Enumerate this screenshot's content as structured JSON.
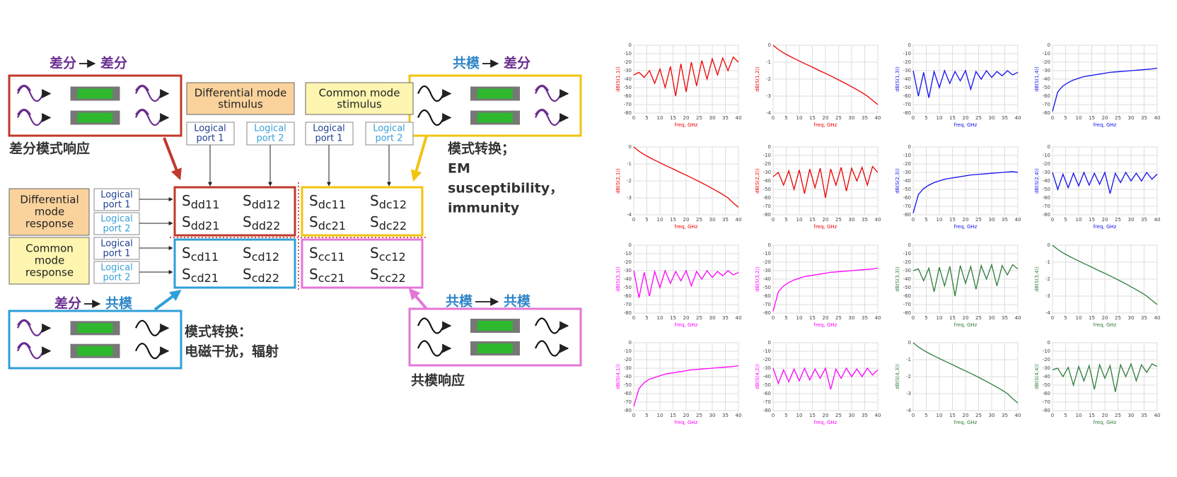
{
  "diagram": {
    "dd_label": {
      "from": "差分",
      "to": "差分"
    },
    "dd_caption": "差分模式响应",
    "dc_label": {
      "from": "共模",
      "to": "差分"
    },
    "dc_caption": [
      "模式转换；",
      "EM",
      "susceptibility，",
      "immunity"
    ],
    "cd_label": {
      "from": "差分",
      "to": "共模"
    },
    "cd_caption": [
      "模式转换：",
      "电磁干扰，辐射"
    ],
    "cc_label": {
      "from": "共模",
      "to": "共模"
    },
    "cc_caption": "共模响应",
    "stimulus": [
      [
        "Differential mode",
        "stimulus"
      ],
      [
        "Common mode",
        "stimulus"
      ]
    ],
    "response": [
      [
        "Differential",
        "mode",
        "response"
      ],
      [
        "Common",
        "mode",
        "response"
      ]
    ],
    "ports_top": [
      [
        "Logical",
        "port 1"
      ],
      [
        "Logical",
        "port 2"
      ],
      [
        "Logical",
        "port 1"
      ],
      [
        "Logical",
        "port 2"
      ]
    ],
    "ports_left": [
      [
        "Logical",
        "port 1"
      ],
      [
        "Logical",
        "port 2"
      ],
      [
        "Logical",
        "port 1"
      ],
      [
        "Logical",
        "port 2"
      ]
    ],
    "symbol": "S",
    "matrix": {
      "dd": [
        "dd11",
        "dd12",
        "dd21",
        "dd22"
      ],
      "dc": [
        "dc11",
        "dc12",
        "dc21",
        "dc22"
      ],
      "cd": [
        "cd11",
        "cd12",
        "cd21",
        "cd22"
      ],
      "cc": [
        "cc11",
        "cc12",
        "cc21",
        "cc22"
      ]
    }
  },
  "chart_data": [
    {
      "type": "line",
      "ylabel": "dB(S(1,1))",
      "xlabel": "freq, GHz",
      "color": "#ee0000",
      "x": [
        0,
        2,
        4,
        6,
        8,
        10,
        12,
        14,
        16,
        18,
        20,
        22,
        24,
        26,
        28,
        30,
        32,
        34,
        36,
        38,
        40
      ],
      "values": [
        -35,
        -32,
        -38,
        -30,
        -45,
        -28,
        -50,
        -25,
        -60,
        -22,
        -55,
        -20,
        -48,
        -18,
        -40,
        -16,
        -35,
        -15,
        -30,
        -14,
        -20
      ],
      "xlim": [
        0,
        40
      ],
      "ylim": [
        -80,
        0
      ],
      "xticks": [
        0,
        5,
        10,
        15,
        20,
        25,
        30,
        35,
        40
      ],
      "yticks": [
        0,
        -10,
        -20,
        -30,
        -40,
        -50,
        -60,
        -70,
        -80
      ],
      "grid": true
    },
    {
      "type": "line",
      "ylabel": "dB(S(1,2))",
      "xlabel": "freq, GHz",
      "color": "#ee0000",
      "x": [
        0,
        2,
        4,
        6,
        8,
        10,
        12,
        14,
        16,
        18,
        20,
        22,
        24,
        26,
        28,
        30,
        32,
        34,
        36,
        38,
        40
      ],
      "values": [
        0,
        -0.25,
        -0.45,
        -0.62,
        -0.78,
        -0.93,
        -1.08,
        -1.22,
        -1.37,
        -1.52,
        -1.66,
        -1.81,
        -1.96,
        -2.12,
        -2.28,
        -2.45,
        -2.62,
        -2.8,
        -3.0,
        -3.25,
        -3.5
      ],
      "xlim": [
        0,
        40
      ],
      "ylim": [
        -4,
        0
      ],
      "xticks": [
        0,
        5,
        10,
        15,
        20,
        25,
        30,
        35,
        40
      ],
      "yticks": [
        0,
        -1,
        -2,
        -3,
        -4
      ],
      "grid": true
    },
    {
      "type": "line",
      "ylabel": "dB(S(1,3))",
      "xlabel": "freq, GHz",
      "color": "#1010ee",
      "x": [
        0,
        2,
        4,
        6,
        8,
        10,
        12,
        14,
        16,
        18,
        20,
        22,
        24,
        26,
        28,
        30,
        32,
        34,
        36,
        38,
        40
      ],
      "values": [
        -30,
        -60,
        -32,
        -62,
        -31,
        -50,
        -30,
        -45,
        -31,
        -42,
        -30,
        -52,
        -31,
        -40,
        -30,
        -38,
        -31,
        -36,
        -30,
        -35,
        -32
      ],
      "xlim": [
        0,
        40
      ],
      "ylim": [
        -80,
        0
      ],
      "xticks": [
        0,
        5,
        10,
        15,
        20,
        25,
        30,
        35,
        40
      ],
      "yticks": [
        0,
        -10,
        -20,
        -30,
        -40,
        -50,
        -60,
        -70,
        -80
      ],
      "grid": true
    },
    {
      "type": "line",
      "ylabel": "dB(S(1,4))",
      "xlabel": "freq, GHz",
      "color": "#1010ee",
      "x": [
        0,
        2,
        4,
        6,
        8,
        10,
        12,
        14,
        16,
        18,
        20,
        22,
        24,
        26,
        28,
        30,
        32,
        34,
        36,
        38,
        40
      ],
      "values": [
        -78,
        -55,
        -48,
        -44,
        -41,
        -39,
        -37,
        -36,
        -35,
        -34,
        -33,
        -32,
        -31.5,
        -31,
        -30.5,
        -30,
        -29.5,
        -29,
        -28.5,
        -28,
        -27
      ],
      "xlim": [
        0,
        40
      ],
      "ylim": [
        -80,
        0
      ],
      "xticks": [
        0,
        5,
        10,
        15,
        20,
        25,
        30,
        35,
        40
      ],
      "yticks": [
        0,
        -10,
        -20,
        -30,
        -40,
        -50,
        -60,
        -70,
        -80
      ],
      "grid": true
    },
    {
      "type": "line",
      "ylabel": "dB(S(2,1))",
      "xlabel": "freq, GHz",
      "color": "#ee0000",
      "x": [
        0,
        2,
        4,
        6,
        8,
        10,
        12,
        14,
        16,
        18,
        20,
        22,
        24,
        26,
        28,
        30,
        32,
        34,
        36,
        38,
        40
      ],
      "values": [
        0,
        -0.25,
        -0.45,
        -0.62,
        -0.78,
        -0.93,
        -1.08,
        -1.22,
        -1.37,
        -1.52,
        -1.66,
        -1.81,
        -1.96,
        -2.12,
        -2.28,
        -2.45,
        -2.62,
        -2.8,
        -3.0,
        -3.3,
        -3.55
      ],
      "xlim": [
        0,
        40
      ],
      "ylim": [
        -4,
        0
      ],
      "xticks": [
        0,
        5,
        10,
        15,
        20,
        25,
        30,
        35,
        40
      ],
      "yticks": [
        0,
        -1,
        -2,
        -3,
        -4
      ],
      "grid": true
    },
    {
      "type": "line",
      "ylabel": "dB(S(2,2))",
      "xlabel": "freq, GHz",
      "color": "#ee0000",
      "x": [
        0,
        2,
        4,
        6,
        8,
        10,
        12,
        14,
        16,
        18,
        20,
        22,
        24,
        26,
        28,
        30,
        32,
        34,
        36,
        38,
        40
      ],
      "values": [
        -35,
        -30,
        -45,
        -28,
        -50,
        -27,
        -55,
        -26,
        -48,
        -25,
        -60,
        -26,
        -45,
        -24,
        -52,
        -25,
        -40,
        -24,
        -45,
        -23,
        -30
      ],
      "xlim": [
        0,
        40
      ],
      "ylim": [
        -80,
        0
      ],
      "xticks": [
        0,
        5,
        10,
        15,
        20,
        25,
        30,
        35,
        40
      ],
      "yticks": [
        0,
        -10,
        -20,
        -30,
        -40,
        -50,
        -60,
        -70,
        -80
      ],
      "grid": true
    },
    {
      "type": "line",
      "ylabel": "dB(S(2,3))",
      "xlabel": "freq, GHz",
      "color": "#1010ee",
      "x": [
        0,
        2,
        4,
        6,
        8,
        10,
        12,
        14,
        16,
        18,
        20,
        22,
        24,
        26,
        28,
        30,
        32,
        34,
        36,
        38,
        40
      ],
      "values": [
        -78,
        -56,
        -49,
        -45,
        -42,
        -40,
        -38,
        -37,
        -36,
        -35,
        -34,
        -33,
        -32.5,
        -32,
        -31.5,
        -31,
        -30.5,
        -30,
        -29.5,
        -29,
        -30
      ],
      "xlim": [
        0,
        40
      ],
      "ylim": [
        -80,
        0
      ],
      "xticks": [
        0,
        5,
        10,
        15,
        20,
        25,
        30,
        35,
        40
      ],
      "yticks": [
        0,
        -10,
        -20,
        -30,
        -40,
        -50,
        -60,
        -70,
        -80
      ],
      "grid": true
    },
    {
      "type": "line",
      "ylabel": "dB(S(2,4))",
      "xlabel": "freq, GHz",
      "color": "#1010ee",
      "x": [
        0,
        2,
        4,
        6,
        8,
        10,
        12,
        14,
        16,
        18,
        20,
        22,
        24,
        26,
        28,
        30,
        32,
        34,
        36,
        38,
        40
      ],
      "values": [
        -30,
        -50,
        -32,
        -48,
        -31,
        -46,
        -30,
        -45,
        -31,
        -44,
        -30,
        -55,
        -31,
        -42,
        -30,
        -40,
        -31,
        -40,
        -30,
        -38,
        -32
      ],
      "xlim": [
        0,
        40
      ],
      "ylim": [
        -80,
        0
      ],
      "xticks": [
        0,
        5,
        10,
        15,
        20,
        25,
        30,
        35,
        40
      ],
      "yticks": [
        0,
        -10,
        -20,
        -30,
        -40,
        -50,
        -60,
        -70,
        -80
      ],
      "grid": true
    },
    {
      "type": "line",
      "ylabel": "dB(S(3,1))",
      "xlabel": "freq, GHz",
      "color": "#ff00ff",
      "x": [
        0,
        2,
        4,
        6,
        8,
        10,
        12,
        14,
        16,
        18,
        20,
        22,
        24,
        26,
        28,
        30,
        32,
        34,
        36,
        38,
        40
      ],
      "values": [
        -30,
        -62,
        -32,
        -60,
        -31,
        -50,
        -30,
        -45,
        -31,
        -42,
        -30,
        -48,
        -31,
        -40,
        -30,
        -38,
        -31,
        -36,
        -30,
        -35,
        -32
      ],
      "xlim": [
        0,
        40
      ],
      "ylim": [
        -80,
        0
      ],
      "xticks": [
        0,
        5,
        10,
        15,
        20,
        25,
        30,
        35,
        40
      ],
      "yticks": [
        0,
        -10,
        -20,
        -30,
        -40,
        -50,
        -60,
        -70,
        -80
      ],
      "grid": true
    },
    {
      "type": "line",
      "ylabel": "dB(S(3,2))",
      "xlabel": "freq, GHz",
      "color": "#ff00ff",
      "x": [
        0,
        2,
        4,
        6,
        8,
        10,
        12,
        14,
        16,
        18,
        20,
        22,
        24,
        26,
        28,
        30,
        32,
        34,
        36,
        38,
        40
      ],
      "values": [
        -78,
        -55,
        -48,
        -44,
        -41,
        -39,
        -37,
        -36,
        -35,
        -34,
        -33,
        -32,
        -31.5,
        -31,
        -30.5,
        -30,
        -29.5,
        -29,
        -28.5,
        -28,
        -27
      ],
      "xlim": [
        0,
        40
      ],
      "ylim": [
        -80,
        0
      ],
      "xticks": [
        0,
        5,
        10,
        15,
        20,
        25,
        30,
        35,
        40
      ],
      "yticks": [
        0,
        -10,
        -20,
        -30,
        -40,
        -50,
        -60,
        -70,
        -80
      ],
      "grid": true
    },
    {
      "type": "line",
      "ylabel": "dB(S(3,3))",
      "xlabel": "freq, GHz",
      "color": "#2e7d3a",
      "x": [
        0,
        2,
        4,
        6,
        8,
        10,
        12,
        14,
        16,
        18,
        20,
        22,
        24,
        26,
        28,
        30,
        32,
        34,
        36,
        38,
        40
      ],
      "values": [
        -30,
        -28,
        -42,
        -27,
        -55,
        -26,
        -48,
        -25,
        -60,
        -24,
        -45,
        -25,
        -52,
        -24,
        -40,
        -23,
        -48,
        -24,
        -35,
        -23,
        -28
      ],
      "xlim": [
        0,
        40
      ],
      "ylim": [
        -80,
        0
      ],
      "xticks": [
        0,
        5,
        10,
        15,
        20,
        25,
        30,
        35,
        40
      ],
      "yticks": [
        0,
        -10,
        -20,
        -30,
        -40,
        -50,
        -60,
        -70,
        -80
      ],
      "grid": true
    },
    {
      "type": "line",
      "ylabel": "dB(S(3,4))",
      "xlabel": "freq, GHz",
      "color": "#2e7d3a",
      "x": [
        0,
        2,
        4,
        6,
        8,
        10,
        12,
        14,
        16,
        18,
        20,
        22,
        24,
        26,
        28,
        30,
        32,
        34,
        36,
        38,
        40
      ],
      "values": [
        0,
        -0.25,
        -0.45,
        -0.62,
        -0.78,
        -0.93,
        -1.08,
        -1.22,
        -1.37,
        -1.52,
        -1.66,
        -1.81,
        -1.96,
        -2.12,
        -2.28,
        -2.45,
        -2.62,
        -2.8,
        -3.0,
        -3.25,
        -3.5
      ],
      "xlim": [
        0,
        40
      ],
      "ylim": [
        -4,
        0
      ],
      "xticks": [
        0,
        5,
        10,
        15,
        20,
        25,
        30,
        35,
        40
      ],
      "yticks": [
        0,
        -1,
        -2,
        -3,
        -4
      ],
      "grid": true
    },
    {
      "type": "line",
      "ylabel": "dB(S(4,1))",
      "xlabel": "freq, GHz",
      "color": "#ff00ff",
      "x": [
        0,
        2,
        4,
        6,
        8,
        10,
        12,
        14,
        16,
        18,
        20,
        22,
        24,
        26,
        28,
        30,
        32,
        34,
        36,
        38,
        40
      ],
      "values": [
        -75,
        -54,
        -47,
        -43,
        -41,
        -39,
        -37,
        -36,
        -35,
        -34,
        -33,
        -32,
        -31.5,
        -31,
        -30.5,
        -30,
        -29.5,
        -29,
        -28.5,
        -28,
        -27
      ],
      "xlim": [
        0,
        40
      ],
      "ylim": [
        -80,
        0
      ],
      "xticks": [
        0,
        5,
        10,
        15,
        20,
        25,
        30,
        35,
        40
      ],
      "yticks": [
        0,
        -10,
        -20,
        -30,
        -40,
        -50,
        -60,
        -70,
        -80
      ],
      "grid": true
    },
    {
      "type": "line",
      "ylabel": "dB(S(4,2))",
      "xlabel": "freq, GHz",
      "color": "#ff00ff",
      "x": [
        0,
        2,
        4,
        6,
        8,
        10,
        12,
        14,
        16,
        18,
        20,
        22,
        24,
        26,
        28,
        30,
        32,
        34,
        36,
        38,
        40
      ],
      "values": [
        -30,
        -48,
        -32,
        -46,
        -31,
        -45,
        -30,
        -44,
        -31,
        -42,
        -30,
        -55,
        -31,
        -42,
        -30,
        -40,
        -31,
        -40,
        -30,
        -38,
        -32
      ],
      "xlim": [
        0,
        40
      ],
      "ylim": [
        -80,
        0
      ],
      "xticks": [
        0,
        5,
        10,
        15,
        20,
        25,
        30,
        35,
        40
      ],
      "yticks": [
        0,
        -10,
        -20,
        -30,
        -40,
        -50,
        -60,
        -70,
        -80
      ],
      "grid": true
    },
    {
      "type": "line",
      "ylabel": "dB(S(4,3))",
      "xlabel": "freq, GHz",
      "color": "#2e7d3a",
      "x": [
        0,
        2,
        4,
        6,
        8,
        10,
        12,
        14,
        16,
        18,
        20,
        22,
        24,
        26,
        28,
        30,
        32,
        34,
        36,
        38,
        40
      ],
      "values": [
        0,
        -0.25,
        -0.45,
        -0.62,
        -0.78,
        -0.93,
        -1.08,
        -1.22,
        -1.37,
        -1.52,
        -1.66,
        -1.81,
        -1.96,
        -2.12,
        -2.28,
        -2.45,
        -2.62,
        -2.8,
        -3.0,
        -3.3,
        -3.55
      ],
      "xlim": [
        0,
        40
      ],
      "ylim": [
        -4,
        0
      ],
      "xticks": [
        0,
        5,
        10,
        15,
        20,
        25,
        30,
        35,
        40
      ],
      "yticks": [
        0,
        -1,
        -2,
        -3,
        -4
      ],
      "grid": true
    },
    {
      "type": "line",
      "ylabel": "dB(S(4,4))",
      "xlabel": "freq, GHz",
      "color": "#2e7d3a",
      "x": [
        0,
        2,
        4,
        6,
        8,
        10,
        12,
        14,
        16,
        18,
        20,
        22,
        24,
        26,
        28,
        30,
        32,
        34,
        36,
        38,
        40
      ],
      "values": [
        -32,
        -30,
        -40,
        -29,
        -50,
        -28,
        -45,
        -27,
        -55,
        -26,
        -42,
        -27,
        -58,
        -26,
        -40,
        -25,
        -45,
        -26,
        -35,
        -25,
        -28
      ],
      "xlim": [
        0,
        40
      ],
      "ylim": [
        -80,
        0
      ],
      "xticks": [
        0,
        5,
        10,
        15,
        20,
        25,
        30,
        35,
        40
      ],
      "yticks": [
        0,
        -10,
        -20,
        -30,
        -40,
        -50,
        -60,
        -70,
        -80
      ],
      "grid": true
    }
  ]
}
